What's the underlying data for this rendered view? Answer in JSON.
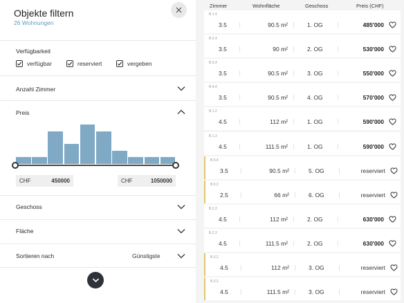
{
  "header": {
    "title": "Objekte filtern",
    "subtitle": "26 Wohnungen"
  },
  "availability": {
    "label": "Verfügbarkeit",
    "options": [
      {
        "label": "verfügbar",
        "checked": true
      },
      {
        "label": "reserviert",
        "checked": true
      },
      {
        "label": "vergeben",
        "checked": true
      }
    ]
  },
  "sections": {
    "rooms": "Anzahl Zimmer",
    "price": "Preis",
    "floor": "Geschoss",
    "area": "Fläche",
    "sort": "Sortieren nach"
  },
  "price_filter": {
    "currency": "CHF",
    "min": "450000",
    "max": "1050000",
    "histogram_levels": [
      0.17,
      0.17,
      0.83,
      0.5,
      1.0,
      0.83,
      0.33,
      0.17,
      0.17,
      0.17
    ]
  },
  "sort": {
    "value": "Günstigste"
  },
  "list": {
    "columns": {
      "rooms": "Zimmer",
      "area": "Wohnfläche",
      "floor": "Geschoss",
      "price": "Preis (CHF)"
    },
    "rows": [
      {
        "id": "B.1.4",
        "rooms": "3.5",
        "area": "90.5 m²",
        "floor": "1. OG",
        "price": "485'000",
        "reserved": false
      },
      {
        "id": "B.2.4",
        "rooms": "3.5",
        "area": "90 m²",
        "floor": "2. OG",
        "price": "530'000",
        "reserved": false
      },
      {
        "id": "B.3.4",
        "rooms": "3.5",
        "area": "90.5 m²",
        "floor": "3. OG",
        "price": "550'000",
        "reserved": false
      },
      {
        "id": "B.4.4",
        "rooms": "3.5",
        "area": "90.5 m²",
        "floor": "4. OG",
        "price": "570'000",
        "reserved": false
      },
      {
        "id": "B.1.2",
        "rooms": "4.5",
        "area": "112 m²",
        "floor": "1. OG",
        "price": "590'000",
        "reserved": false
      },
      {
        "id": "B.1.3",
        "rooms": "4.5",
        "area": "111.5 m²",
        "floor": "1. OG",
        "price": "590'000",
        "reserved": false
      },
      {
        "id": "B.5.4",
        "rooms": "3.5",
        "area": "90.5 m²",
        "floor": "5. OG",
        "price": "reserviert",
        "reserved": true
      },
      {
        "id": "B.6.3",
        "rooms": "2.5",
        "area": "66 m²",
        "floor": "6. OG",
        "price": "reserviert",
        "reserved": true
      },
      {
        "id": "B.2.2",
        "rooms": "4.5",
        "area": "112 m²",
        "floor": "2. OG",
        "price": "630'000",
        "reserved": false
      },
      {
        "id": "B.2.3",
        "rooms": "4.5",
        "area": "111.5 m²",
        "floor": "2. OG",
        "price": "630'000",
        "reserved": false
      },
      {
        "id": "B.3.2",
        "rooms": "4.5",
        "area": "112 m²",
        "floor": "3. OG",
        "price": "reserviert",
        "reserved": true
      },
      {
        "id": "B.3.3",
        "rooms": "4.5",
        "area": "111.5 m²",
        "floor": "3. OG",
        "price": "reserviert",
        "reserved": true
      }
    ]
  },
  "colors": {
    "accent": "#5b9bbd",
    "histogram": "#7fa9c4",
    "reserved_marker": "#e5c46a"
  }
}
